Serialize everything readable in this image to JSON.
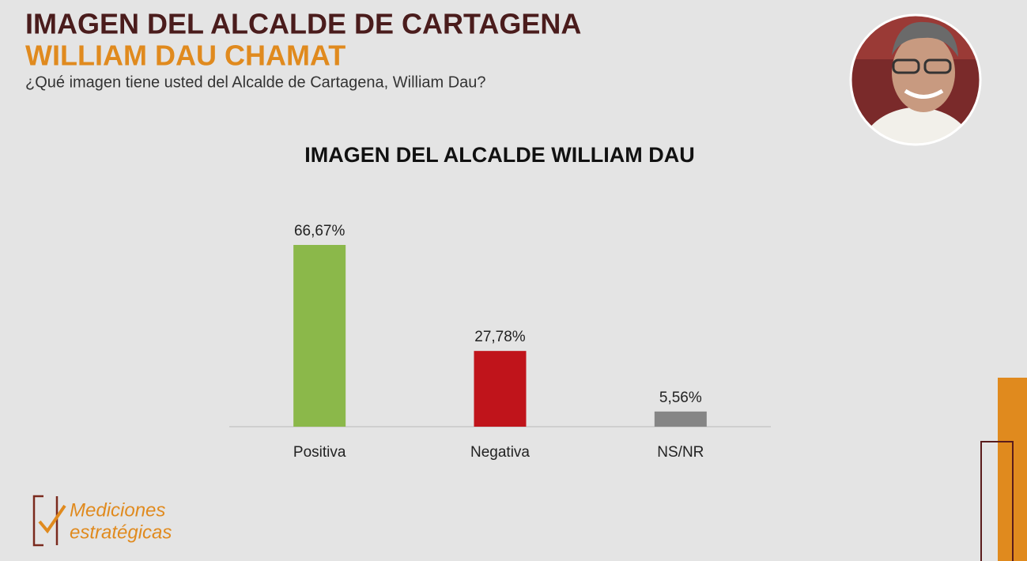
{
  "header": {
    "title": "IMAGEN DEL ALCALDE DE CARTAGENA",
    "subtitle": "WILLIAM DAU CHAMAT",
    "question": "¿Qué imagen tiene usted del Alcalde de Cartagena, William Dau?"
  },
  "chart_data": {
    "type": "bar",
    "title": "IMAGEN DEL ALCALDE WILLIAM DAU",
    "categories": [
      "Positiva",
      "Negativa",
      "NS/NR"
    ],
    "values": [
      66.67,
      27.78,
      5.56
    ],
    "value_labels": [
      "66,67%",
      "27,78%",
      "5,56%"
    ],
    "colors": [
      "#8bb84a",
      "#c0141b",
      "#858585"
    ]
  },
  "logo": {
    "line1": "Mediciones",
    "line2": "estratégicas"
  }
}
